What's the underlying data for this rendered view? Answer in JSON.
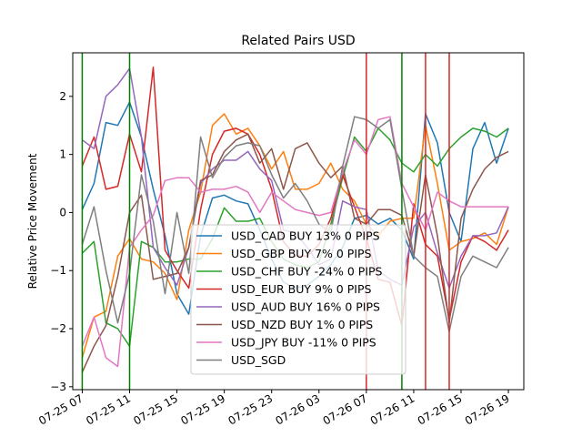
{
  "chart_data": {
    "type": "line",
    "title": "Related Pairs USD",
    "xlabel": "",
    "ylabel": "Relative Price Movement",
    "x_tick_labels": [
      "07-25 07",
      "07-25 11",
      "07-25 15",
      "07-25 19",
      "07-25 23",
      "07-26 03",
      "07-26 07",
      "07-26 11",
      "07-26 15",
      "07-26 19"
    ],
    "y_tick_labels": [
      "−3",
      "−2",
      "−1",
      "0",
      "1",
      "2"
    ],
    "x_hours": [
      7,
      8,
      9,
      10,
      11,
      12,
      13,
      14,
      15,
      16,
      17,
      18,
      19,
      20,
      21,
      22,
      23,
      24,
      25,
      26,
      27,
      28,
      29,
      30,
      31,
      32,
      33,
      34,
      35,
      36,
      37,
      38,
      39,
      40,
      41,
      42,
      43
    ],
    "xlim": [
      6.2,
      44.3
    ],
    "ylim": [
      -3.05,
      2.75
    ],
    "grid": false,
    "legend_position": "lower center",
    "vertical_lines": [
      {
        "x": 7,
        "color": "#008000"
      },
      {
        "x": 11,
        "color": "#008000"
      },
      {
        "x": 31,
        "color": "#d62728"
      },
      {
        "x": 34,
        "color": "#008000"
      },
      {
        "x": 36,
        "color": "#d62728"
      },
      {
        "x": 38,
        "color": "#d62728"
      }
    ],
    "series": [
      {
        "name": "USD_CAD BUY 13% 0 PIPS",
        "color": "#1f77b4",
        "values": [
          0.05,
          0.5,
          1.55,
          1.5,
          1.9,
          1.3,
          0.4,
          -0.4,
          -1.4,
          -1.75,
          -0.4,
          0.25,
          0.3,
          0.2,
          0.15,
          -0.3,
          -0.8,
          -1.2,
          -1.3,
          -1.25,
          -1.1,
          -0.9,
          -0.6,
          -0.1,
          -0.05,
          -0.2,
          -0.1,
          -0.3,
          -0.8,
          1.7,
          1.2,
          0.0,
          -0.5,
          1.1,
          1.55,
          0.85,
          1.45
        ]
      },
      {
        "name": "USD_GBP BUY 7% 0 PIPS",
        "color": "#ff7f0e",
        "values": [
          -2.5,
          -1.8,
          -1.7,
          -0.75,
          -0.45,
          -0.8,
          -0.85,
          -1.05,
          -1.5,
          -0.3,
          0.35,
          1.5,
          1.7,
          1.35,
          1.45,
          1.15,
          0.75,
          1.05,
          0.4,
          0.4,
          0.5,
          0.85,
          0.4,
          0.2,
          -0.2,
          -0.4,
          -0.15,
          -0.1,
          -0.1,
          1.5,
          0.5,
          -0.65,
          -0.5,
          -0.45,
          -0.35,
          -0.55,
          0.1
        ]
      },
      {
        "name": "USD_CHF BUY -24% 0 PIPS",
        "color": "#2ca02c",
        "values": [
          -0.7,
          -0.5,
          -1.9,
          -2.0,
          -2.3,
          -0.5,
          -0.6,
          -0.85,
          -0.85,
          -0.8,
          -0.8,
          -0.45,
          0.08,
          -0.15,
          -0.15,
          -0.1,
          -0.5,
          -0.8,
          -0.9,
          -0.95,
          -0.85,
          -0.2,
          0.6,
          1.3,
          1.05,
          1.45,
          1.25,
          0.85,
          0.7,
          1.0,
          0.8,
          1.1,
          1.3,
          1.45,
          1.4,
          1.3,
          1.45
        ]
      },
      {
        "name": "USD_EUR BUY 9% 0 PIPS",
        "color": "#d62728",
        "values": [
          0.8,
          1.3,
          0.4,
          0.45,
          1.35,
          0.7,
          2.5,
          -0.65,
          -1.0,
          -1.3,
          0.05,
          1.0,
          1.4,
          1.45,
          1.35,
          1.0,
          0.4,
          -0.5,
          -0.75,
          -0.75,
          -0.55,
          -0.1,
          0.65,
          0.1,
          -0.45,
          -1.15,
          -1.2,
          -1.95,
          0.15,
          -0.55,
          -0.75,
          -1.85,
          -0.85,
          -0.4,
          -0.5,
          -0.65,
          -0.3
        ]
      },
      {
        "name": "USD_AUD BUY 16% 0 PIPS",
        "color": "#9467bd",
        "values": [
          1.25,
          1.1,
          2.0,
          2.2,
          2.48,
          1.3,
          -0.6,
          -0.95,
          -1.25,
          -0.6,
          0.5,
          0.75,
          0.9,
          0.9,
          1.05,
          0.75,
          0.55,
          -0.3,
          -0.35,
          -0.6,
          -0.9,
          -0.8,
          0.2,
          0.1,
          0.05,
          -1.0,
          -1.15,
          -1.25,
          -0.25,
          0.0,
          -0.7,
          -1.3,
          -0.75,
          -0.4,
          -0.4,
          -0.35,
          0.1
        ]
      },
      {
        "name": "USD_NZD BUY 1% 0 PIPS",
        "color": "#8c564b",
        "values": [
          -2.75,
          -2.3,
          -1.95,
          -1.1,
          0.0,
          0.3,
          -1.15,
          -1.1,
          -1.05,
          -0.6,
          0.55,
          0.65,
          1.05,
          1.25,
          1.35,
          0.85,
          1.1,
          0.4,
          1.1,
          1.2,
          0.85,
          0.6,
          0.8,
          -0.1,
          -0.2,
          0.05,
          0.05,
          -0.05,
          -0.75,
          0.65,
          -0.4,
          -1.9,
          -0.1,
          0.4,
          0.75,
          0.95,
          1.05
        ]
      },
      {
        "name": "USD_JPY BUY -11% 0 PIPS",
        "color": "#e377c2",
        "values": [
          -2.3,
          -1.8,
          -2.5,
          -2.65,
          -0.6,
          -0.3,
          -0.05,
          0.55,
          0.6,
          0.6,
          0.35,
          0.4,
          0.4,
          0.45,
          0.35,
          0.0,
          0.35,
          0.2,
          0.05,
          0.0,
          -0.05,
          0.0,
          0.7,
          1.25,
          1.0,
          1.6,
          1.65,
          0.5,
          0.1,
          -0.3,
          0.35,
          0.2,
          0.1,
          0.1,
          0.1,
          0.1,
          0.1
        ]
      },
      {
        "name": "USD_SGD",
        "color": "#7f7f7f",
        "values": [
          -0.55,
          0.1,
          -1.0,
          -1.9,
          -1.05,
          0.65,
          -0.15,
          -1.4,
          0.0,
          -1.05,
          1.3,
          0.6,
          0.95,
          1.15,
          1.2,
          1.15,
          0.65,
          0.25,
          0.5,
          0.2,
          -0.2,
          -0.35,
          0.8,
          1.65,
          1.6,
          1.45,
          1.6,
          0.4,
          -0.75,
          -0.95,
          -1.1,
          -2.05,
          -1.1,
          -0.75,
          -0.85,
          -0.95,
          -0.6
        ]
      }
    ]
  }
}
